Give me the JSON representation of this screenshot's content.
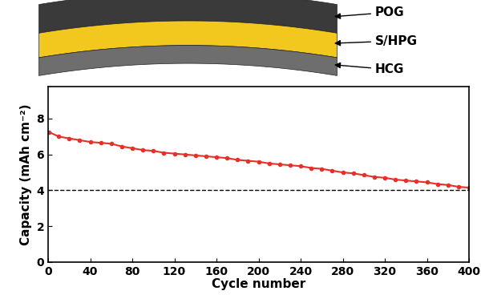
{
  "diagram": {
    "layers": [
      {
        "label": "POG",
        "color": "#3a3a3a"
      },
      {
        "label": "S/HPG",
        "color": "#f2c81e"
      },
      {
        "label": "HCG",
        "color": "#6e6e6e"
      }
    ]
  },
  "chart_data": {
    "type": "line",
    "x_label": "Cycle number",
    "y_label": "Capacity (mAh cm⁻²)",
    "x": [
      1,
      10,
      20,
      30,
      40,
      50,
      60,
      70,
      80,
      90,
      100,
      110,
      120,
      130,
      140,
      150,
      160,
      170,
      180,
      190,
      200,
      210,
      220,
      230,
      240,
      250,
      260,
      270,
      280,
      290,
      300,
      310,
      320,
      330,
      340,
      350,
      360,
      370,
      380,
      390,
      400
    ],
    "series": [
      {
        "name": "Capacity",
        "color": "#e8302a",
        "marker": "o",
        "line_style": "solid",
        "values": [
          7.25,
          7.0,
          6.9,
          6.8,
          6.7,
          6.65,
          6.6,
          6.45,
          6.35,
          6.25,
          6.2,
          6.1,
          6.05,
          6.0,
          5.95,
          5.9,
          5.85,
          5.8,
          5.7,
          5.65,
          5.6,
          5.5,
          5.45,
          5.4,
          5.35,
          5.25,
          5.2,
          5.1,
          5.0,
          4.95,
          4.85,
          4.75,
          4.7,
          4.6,
          4.55,
          4.5,
          4.45,
          4.35,
          4.3,
          4.2,
          4.15
        ]
      }
    ],
    "reference_line": 4,
    "xlim": [
      0,
      400
    ],
    "xticks": [
      0,
      40,
      80,
      120,
      160,
      200,
      240,
      280,
      320,
      360,
      400
    ],
    "ylim": [
      0,
      9.8
    ],
    "yticks": [
      0,
      2,
      4,
      6,
      8
    ],
    "grid": false
  }
}
